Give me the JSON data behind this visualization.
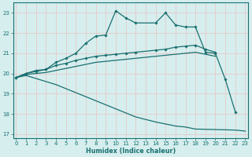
{
  "xlabel": "Humidex (Indice chaleur)",
  "background_color": "#d6eeee",
  "grid_color": "#e8c8c8",
  "line_color": "#1a7070",
  "ylim": [
    16.8,
    23.5
  ],
  "yticks": [
    17,
    18,
    19,
    20,
    21,
    22,
    23
  ],
  "xlim": [
    -0.3,
    23.3
  ],
  "series": {
    "curve1_x": [
      0,
      1,
      2,
      3,
      4,
      5,
      6,
      7,
      8,
      9,
      10,
      11,
      12,
      14,
      15,
      16,
      17,
      18,
      19,
      20,
      21,
      22
    ],
    "curve1_y": [
      19.8,
      20.0,
      20.15,
      20.2,
      20.55,
      20.75,
      21.0,
      21.5,
      21.85,
      21.9,
      23.1,
      22.75,
      22.5,
      22.5,
      23.0,
      22.4,
      22.3,
      22.3,
      21.05,
      21.0,
      19.7,
      18.1
    ],
    "curve2_x": [
      0,
      1,
      2,
      3,
      4,
      5,
      6,
      7,
      8,
      9,
      10,
      11,
      12,
      14,
      15,
      16,
      17,
      18,
      19,
      20
    ],
    "curve2_y": [
      19.8,
      20.0,
      20.1,
      20.2,
      20.4,
      20.5,
      20.65,
      20.75,
      20.85,
      20.9,
      20.95,
      21.0,
      21.05,
      21.15,
      21.2,
      21.3,
      21.35,
      21.4,
      21.2,
      21.05
    ],
    "curve3_x": [
      0,
      1,
      2,
      3,
      4,
      5,
      6,
      7,
      8,
      9,
      10,
      11,
      12,
      14,
      15,
      16,
      17,
      18,
      19,
      20
    ],
    "curve3_y": [
      19.8,
      19.95,
      20.0,
      20.05,
      20.15,
      20.25,
      20.35,
      20.45,
      20.55,
      20.6,
      20.65,
      20.7,
      20.75,
      20.85,
      20.9,
      20.95,
      21.0,
      21.05,
      20.95,
      20.85
    ],
    "curve4_x": [
      0,
      1,
      2,
      3,
      4,
      5,
      6,
      7,
      8,
      9,
      10,
      11,
      12,
      14,
      15,
      16,
      17,
      18,
      22,
      23
    ],
    "curve4_y": [
      19.8,
      19.9,
      19.75,
      19.6,
      19.45,
      19.25,
      19.05,
      18.85,
      18.65,
      18.45,
      18.25,
      18.05,
      17.85,
      17.6,
      17.5,
      17.4,
      17.35,
      17.25,
      17.2,
      17.15
    ]
  }
}
